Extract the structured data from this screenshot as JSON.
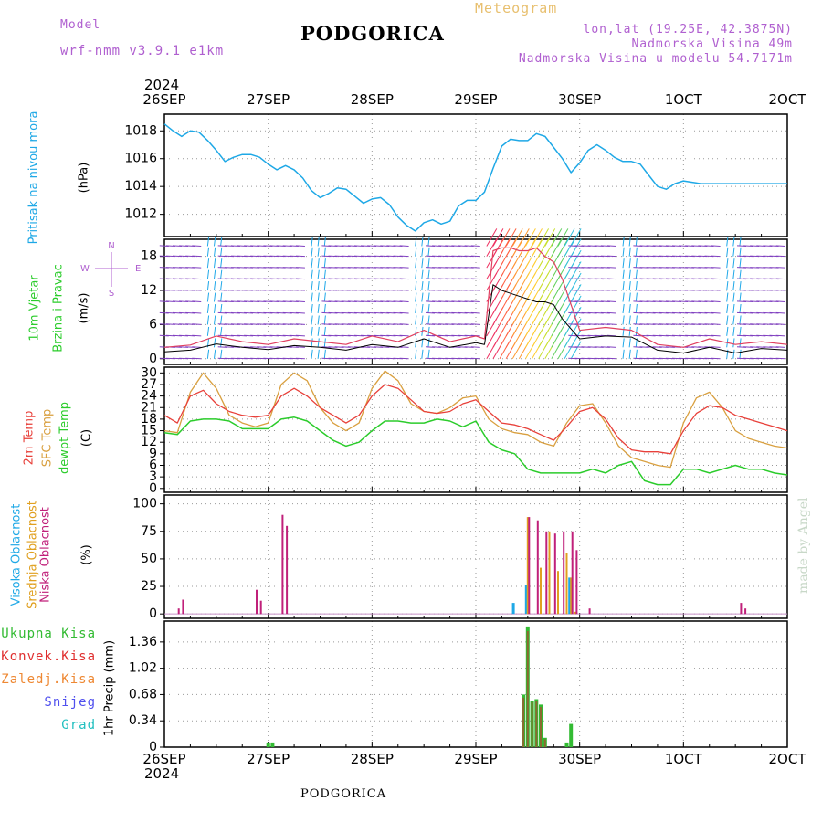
{
  "header": {
    "model_label": "Model",
    "model_name": "wrf-nmm_v3.9.1 e1km",
    "title": "PODGORICA",
    "meteogram": "Meteogram",
    "lonlat": "lon,lat (19.25E, 42.3875N)",
    "elevation": "Nadmorska Visina 49m",
    "model_elevation": "Nadmorska Visina u modelu 54.7171m"
  },
  "footer": {
    "title": "PODGORICA",
    "credit": "made by Angel"
  },
  "x_axis": {
    "year": "2024",
    "ticks": [
      "26SEP",
      "27SEP",
      "28SEP",
      "29SEP",
      "30SEP",
      "1OCT",
      "2OCT"
    ]
  },
  "labels": {
    "p1": {
      "main": "Pritisak na nivou mora",
      "unit": "(hPa)"
    },
    "p2": {
      "line1": "10m Vjetar",
      "line2": "Brzina i Pravac",
      "unit": "(m/s)"
    },
    "p3": {
      "line1": "2m Temp",
      "line2": "SFC Temp",
      "line3": "dewpt Temp",
      "unit": "(C)"
    },
    "p4": {
      "line1": "Visoka Oblacnost",
      "line2": "Srednja Oblacnost",
      "line3": "Niska Oblacnost",
      "unit": "(%)"
    },
    "p5": {
      "l1": "Ukupna Kisa",
      "l2": "Konvek.Kisa",
      "l3": "Zaledj.Kisa",
      "l4": "Snijeg",
      "l5": "Grad",
      "unit": "1hr Precip (mm)"
    },
    "compass": {
      "n": "N",
      "s": "S",
      "w": "W",
      "e": "E"
    }
  },
  "colors": {
    "pressure": "#1ea8e6",
    "t2m": "#e8403a",
    "sfc": "#d9a040",
    "dew": "#2bcc2b",
    "high": "#1ea8e6",
    "mid": "#e0a020",
    "low": "#c0207a",
    "total": "#33bb33",
    "conv": "#e03030",
    "frozen": "#ee8833",
    "snow": "#5050ee",
    "grad": "#22c0c0",
    "purple_text": "#b060d0",
    "grid": "#999999"
  },
  "chart_data": [
    {
      "type": "line",
      "name": "sea level pressure",
      "x_unit": "hours since 26SEP 00Z",
      "ylabel": "(hPa)",
      "ylim": [
        1010.4,
        1019.2
      ],
      "yticks": [
        1012,
        1014,
        1016,
        1018
      ],
      "x": [
        0,
        2,
        4,
        6,
        8,
        10,
        12,
        14,
        16,
        18,
        20,
        22,
        24,
        26,
        28,
        30,
        32,
        34,
        36,
        38,
        40,
        42,
        44,
        46,
        48,
        50,
        52,
        54,
        56,
        58,
        60,
        62,
        64,
        66,
        68,
        70,
        72,
        74,
        76,
        78,
        80,
        82,
        84,
        86,
        88,
        90,
        92,
        94,
        96,
        98,
        100,
        102,
        104,
        106,
        108,
        110,
        112,
        114,
        116,
        118,
        120,
        122,
        124,
        126,
        128,
        130,
        132,
        134,
        136,
        138,
        140,
        142,
        144
      ],
      "series": [
        {
          "values": [
            1018.5,
            1018.0,
            1017.6,
            1018.0,
            1017.9,
            1017.3,
            1016.6,
            1015.8,
            1016.1,
            1016.3,
            1016.3,
            1016.1,
            1015.6,
            1015.2,
            1015.5,
            1015.2,
            1014.6,
            1013.7,
            1013.2,
            1013.5,
            1013.9,
            1013.8,
            1013.3,
            1012.8,
            1013.1,
            1013.2,
            1012.7,
            1011.8,
            1011.2,
            1010.8,
            1011.4,
            1011.6,
            1011.3,
            1011.5,
            1012.6,
            1013.0,
            1013.0,
            1013.6,
            1015.3,
            1016.9,
            1017.4,
            1017.3,
            1017.3,
            1017.8,
            1017.6,
            1016.8,
            1016.0,
            1015.0,
            1015.7,
            1016.6,
            1017.0,
            1016.6,
            1016.1,
            1015.8,
            1015.8,
            1015.6,
            1014.8,
            1014.0,
            1013.8,
            1014.2,
            1014.4,
            1014.3,
            1014.2,
            1014.2,
            1014.2,
            1014.2,
            1014.2,
            1014.2,
            1014.2,
            1014.2,
            1014.2,
            1014.2,
            1014.2
          ]
        }
      ]
    },
    {
      "type": "line",
      "name": "10m wind",
      "ylabel": "(m/s)",
      "ylim": [
        -1.0,
        21.0
      ],
      "yticks": [
        0,
        6,
        12,
        18
      ],
      "x": [
        0,
        6,
        12,
        18,
        24,
        30,
        36,
        42,
        48,
        54,
        60,
        66,
        72,
        74,
        76,
        78,
        80,
        82,
        84,
        86,
        88,
        90,
        92,
        96,
        102,
        108,
        114,
        120,
        126,
        132,
        138,
        144
      ],
      "series": [
        {
          "name": "Brzina",
          "values": [
            1.2,
            1.5,
            2.6,
            2.0,
            1.6,
            2.3,
            2.0,
            1.5,
            2.5,
            2.0,
            3.5,
            2.0,
            2.8,
            2.5,
            13.0,
            12.0,
            11.5,
            11.0,
            10.5,
            10.0,
            10.0,
            9.5,
            7.0,
            3.5,
            4.0,
            3.8,
            1.5,
            1.0,
            2.0,
            1.0,
            1.8,
            1.5
          ]
        },
        {
          "name": "Udari",
          "values": [
            2.0,
            2.4,
            4.0,
            3.0,
            2.5,
            3.5,
            3.0,
            2.5,
            4.0,
            3.0,
            5.0,
            3.0,
            4.0,
            3.5,
            19.0,
            19.5,
            19.5,
            19.0,
            19.0,
            19.5,
            18.0,
            17.0,
            14.0,
            5.0,
            5.5,
            5.0,
            2.5,
            2.0,
            3.5,
            2.5,
            3.0,
            2.5
          ]
        }
      ]
    },
    {
      "type": "line",
      "name": "temperature",
      "ylabel": "(C)",
      "ylim": [
        -1,
        31.5
      ],
      "yticks": [
        0,
        3,
        6,
        9,
        12,
        15,
        18,
        21,
        24,
        27,
        30
      ],
      "x": [
        0,
        3,
        6,
        9,
        12,
        15,
        18,
        21,
        24,
        27,
        30,
        33,
        36,
        39,
        42,
        45,
        48,
        51,
        54,
        57,
        60,
        63,
        66,
        69,
        72,
        75,
        78,
        81,
        84,
        87,
        90,
        93,
        96,
        99,
        102,
        105,
        108,
        111,
        114,
        117,
        120,
        123,
        126,
        129,
        132,
        135,
        138,
        141,
        144
      ],
      "series": [
        {
          "name": "2m Temp",
          "values": [
            19,
            17,
            24,
            25.5,
            22,
            20,
            19,
            18.5,
            19,
            24,
            26,
            24,
            21,
            19,
            17,
            19,
            24,
            27,
            26,
            23,
            20,
            19.5,
            20,
            22,
            23,
            20,
            17,
            16.5,
            15.5,
            14,
            12.5,
            16,
            20,
            21,
            18,
            13,
            10,
            9.5,
            9.5,
            9,
            15,
            19.5,
            21.5,
            21,
            19,
            18,
            17,
            16,
            15
          ]
        },
        {
          "name": "SFC Temp",
          "values": [
            15,
            14.5,
            25,
            30,
            26,
            19,
            17,
            16,
            17,
            27,
            30,
            28,
            21,
            17,
            15,
            17,
            26,
            30.5,
            28,
            22,
            20,
            19.5,
            21,
            23.5,
            24,
            18,
            15.5,
            14.5,
            14,
            12,
            11,
            17,
            21.5,
            22,
            17,
            11,
            8,
            7,
            6,
            5.5,
            17,
            23.5,
            25,
            21,
            15,
            13,
            12,
            11,
            10.5
          ]
        },
        {
          "name": "dewpt Temp",
          "values": [
            14.5,
            14,
            17.5,
            18,
            18,
            17.5,
            15.5,
            15.5,
            15.5,
            18,
            18.5,
            17.5,
            15,
            12.5,
            11,
            12,
            15,
            17.5,
            17.5,
            17,
            17,
            18,
            17.5,
            16,
            17.5,
            12,
            10,
            9,
            5,
            4,
            4,
            4,
            4,
            5,
            4,
            6,
            7,
            2,
            1,
            1,
            5,
            5,
            4,
            5,
            6,
            5,
            5,
            4,
            3.5
          ]
        }
      ]
    },
    {
      "type": "bar",
      "name": "cloud cover",
      "ylabel": "(%)",
      "ylim": [
        -4,
        108
      ],
      "yticks": [
        0,
        25,
        50,
        75,
        100
      ],
      "series": [
        {
          "name": "Visoka Oblacnost",
          "x": [
            84,
            94,
            81
          ],
          "values": [
            26,
            33,
            10
          ]
        },
        {
          "name": "Srednja Oblacnost",
          "x": [
            84,
            87,
            89,
            91,
            93,
            94,
            95
          ],
          "values": [
            88,
            42,
            75,
            39,
            55,
            33,
            2
          ]
        },
        {
          "name": "Niska Oblacnost",
          "x": [
            3,
            4,
            21,
            22,
            27,
            28,
            84,
            86,
            88,
            90,
            92,
            94,
            95,
            98,
            133,
            134
          ],
          "values": [
            5,
            13,
            22,
            12,
            90,
            80,
            88,
            85,
            75,
            73,
            75,
            75,
            58,
            5,
            10,
            5
          ]
        }
      ]
    },
    {
      "type": "bar",
      "name": "1hr precipitation",
      "ylabel": "1hr Precip (mm)",
      "ylim": [
        0,
        1.63
      ],
      "yticks": [
        0,
        0.34,
        0.68,
        1.02,
        1.36
      ],
      "series": [
        {
          "name": "Ukupna Kisa",
          "x": [
            24,
            25,
            83,
            84,
            85,
            86,
            87,
            88,
            89,
            93,
            94
          ],
          "values": [
            0.06,
            0.06,
            0.68,
            1.56,
            0.6,
            0.62,
            0.55,
            0.12,
            0.0,
            0.06,
            0.3
          ]
        },
        {
          "name": "Konvek.Kisa",
          "x": [
            83,
            84,
            85,
            86,
            87,
            88
          ],
          "values": [
            0.64,
            1.5,
            0.58,
            0.6,
            0.52,
            0.1
          ]
        }
      ]
    }
  ]
}
